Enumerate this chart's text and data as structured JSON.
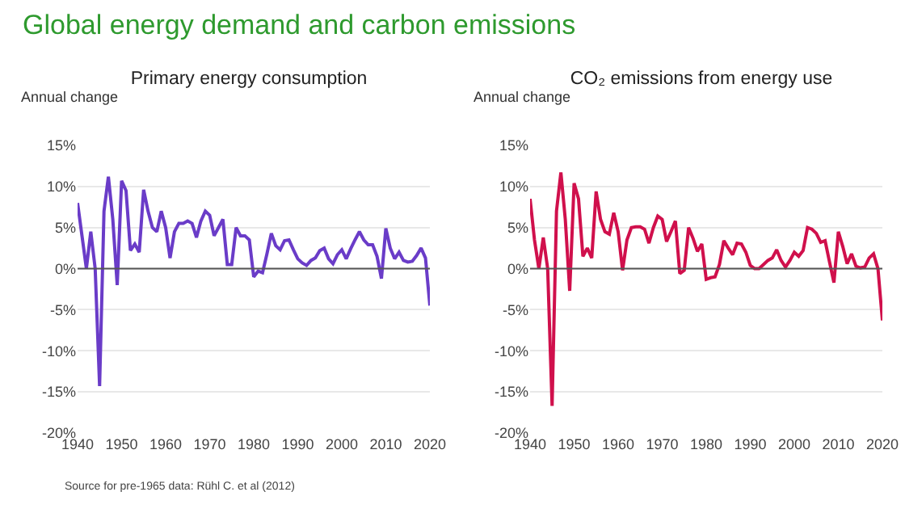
{
  "chart_data": [
    {
      "type": "line",
      "title": "Global energy demand and carbon emissions",
      "subtitle": "Primary energy consumption",
      "ylabel": "Annual change",
      "x": [
        1940,
        1941,
        1942,
        1943,
        1944,
        1945,
        1946,
        1947,
        1948,
        1949,
        1950,
        1951,
        1952,
        1953,
        1954,
        1955,
        1956,
        1957,
        1958,
        1959,
        1960,
        1961,
        1962,
        1963,
        1964,
        1965,
        1966,
        1967,
        1968,
        1969,
        1970,
        1971,
        1972,
        1973,
        1974,
        1975,
        1976,
        1977,
        1978,
        1979,
        1980,
        1981,
        1982,
        1983,
        1984,
        1985,
        1986,
        1987,
        1988,
        1989,
        1990,
        1991,
        1992,
        1993,
        1994,
        1995,
        1996,
        1997,
        1998,
        1999,
        2000,
        2001,
        2002,
        2003,
        2004,
        2005,
        2006,
        2007,
        2008,
        2009,
        2010,
        2011,
        2012,
        2013,
        2014,
        2015,
        2016,
        2017,
        2018,
        2019,
        2020
      ],
      "series": [
        {
          "color": "#6a3cc8",
          "values": [
            8,
            4,
            0,
            4.5,
            0,
            -14.3,
            7,
            11.2,
            6,
            -2,
            10.7,
            9.5,
            2.2,
            3,
            2,
            9.6,
            7,
            5,
            4.5,
            7,
            5,
            1.3,
            4.5,
            5.5,
            5.5,
            5.8,
            5.5,
            3.8,
            5.8,
            7,
            6.5,
            4,
            5,
            6,
            0.5,
            0.5,
            5,
            4,
            4,
            3.5,
            -1,
            -0.3,
            -0.5,
            1.8,
            4.3,
            2.8,
            2.3,
            3.4,
            3.5,
            2.3,
            1.2,
            0.7,
            0.4,
            1,
            1.3,
            2.2,
            2.5,
            1.2,
            0.6,
            1.7,
            2.3,
            1.2,
            2.4,
            3.5,
            4.5,
            3.5,
            2.9,
            2.9,
            1.5,
            -1.2,
            4.9,
            2.5,
            1.2,
            2,
            1,
            0.8,
            0.9,
            1.6,
            2.5,
            1.3,
            -4.5
          ]
        }
      ],
      "xlim": [
        1940,
        2020
      ],
      "xticks": [
        1940,
        1950,
        1960,
        1970,
        1980,
        1990,
        2000,
        2010,
        2020
      ],
      "ylim": [
        -20,
        15
      ],
      "yticks": [
        {
          "value": -20,
          "label": "-20%"
        },
        {
          "value": -15,
          "label": "-15%"
        },
        {
          "value": -10,
          "label": "-10%"
        },
        {
          "value": -5,
          "label": "-5%"
        },
        {
          "value": 0,
          "label": "0%"
        },
        {
          "value": 5,
          "label": "5%"
        },
        {
          "value": 10,
          "label": "10%"
        },
        {
          "value": 15,
          "label": "15%"
        }
      ],
      "grid": "y",
      "ref_lines": [
        {
          "axis": "y",
          "value": 0,
          "color": "#555555"
        }
      ],
      "annotations": [
        "Source for pre-1965 data: Rühl C. et al (2012)"
      ]
    },
    {
      "type": "line",
      "subtitle": "CO₂ emissions from energy use",
      "ylabel": "Annual change",
      "x": [
        1940,
        1941,
        1942,
        1943,
        1944,
        1945,
        1946,
        1947,
        1948,
        1949,
        1950,
        1951,
        1952,
        1953,
        1954,
        1955,
        1956,
        1957,
        1958,
        1959,
        1960,
        1961,
        1962,
        1963,
        1964,
        1965,
        1966,
        1967,
        1968,
        1969,
        1970,
        1971,
        1972,
        1973,
        1974,
        1975,
        1976,
        1977,
        1978,
        1979,
        1980,
        1981,
        1982,
        1983,
        1984,
        1985,
        1986,
        1987,
        1988,
        1989,
        1990,
        1991,
        1992,
        1993,
        1994,
        1995,
        1996,
        1997,
        1998,
        1999,
        2000,
        2001,
        2002,
        2003,
        2004,
        2005,
        2006,
        2007,
        2008,
        2009,
        2010,
        2011,
        2012,
        2013,
        2014,
        2015,
        2016,
        2017,
        2018,
        2019,
        2020
      ],
      "series": [
        {
          "color": "#d0104c",
          "values": [
            8.5,
            3.5,
            0,
            3.8,
            0,
            -16.7,
            7,
            11.7,
            6,
            -2.7,
            10.4,
            8.5,
            1.5,
            2.5,
            1.3,
            9.4,
            6,
            4.5,
            4.2,
            6.8,
            4.5,
            -0.2,
            3.5,
            5,
            5.1,
            5.1,
            4.8,
            3.1,
            5,
            6.4,
            6,
            3.3,
            4.5,
            5.8,
            -0.6,
            -0.2,
            5,
            3.7,
            2.1,
            3,
            -1.3,
            -1.1,
            -1,
            0.5,
            3.4,
            2.5,
            1.7,
            3.1,
            3,
            2,
            0.4,
            0,
            0,
            0.5,
            1,
            1.3,
            2.3,
            1,
            0.2,
            1,
            2,
            1.5,
            2.2,
            5,
            4.8,
            4.3,
            3.2,
            3.4,
            0.8,
            -1.7,
            4.5,
            2.7,
            0.6,
            1.8,
            0.3,
            0.1,
            0.2,
            1.3,
            1.8,
            0,
            -6.3
          ]
        }
      ],
      "xlim": [
        1940,
        2020
      ],
      "xticks": [
        1940,
        1950,
        1960,
        1970,
        1980,
        1990,
        2000,
        2010,
        2020
      ],
      "ylim": [
        -20,
        15
      ],
      "yticks": [
        {
          "value": -20,
          "label": "-20%"
        },
        {
          "value": -15,
          "label": "-15%"
        },
        {
          "value": -10,
          "label": "-10%"
        },
        {
          "value": -5,
          "label": "-5%"
        },
        {
          "value": 0,
          "label": "0%"
        },
        {
          "value": 5,
          "label": "5%"
        },
        {
          "value": 10,
          "label": "10%"
        },
        {
          "value": 15,
          "label": "15%"
        }
      ],
      "grid": "y",
      "ref_lines": [
        {
          "axis": "y",
          "value": 0,
          "color": "#555555"
        }
      ]
    }
  ]
}
